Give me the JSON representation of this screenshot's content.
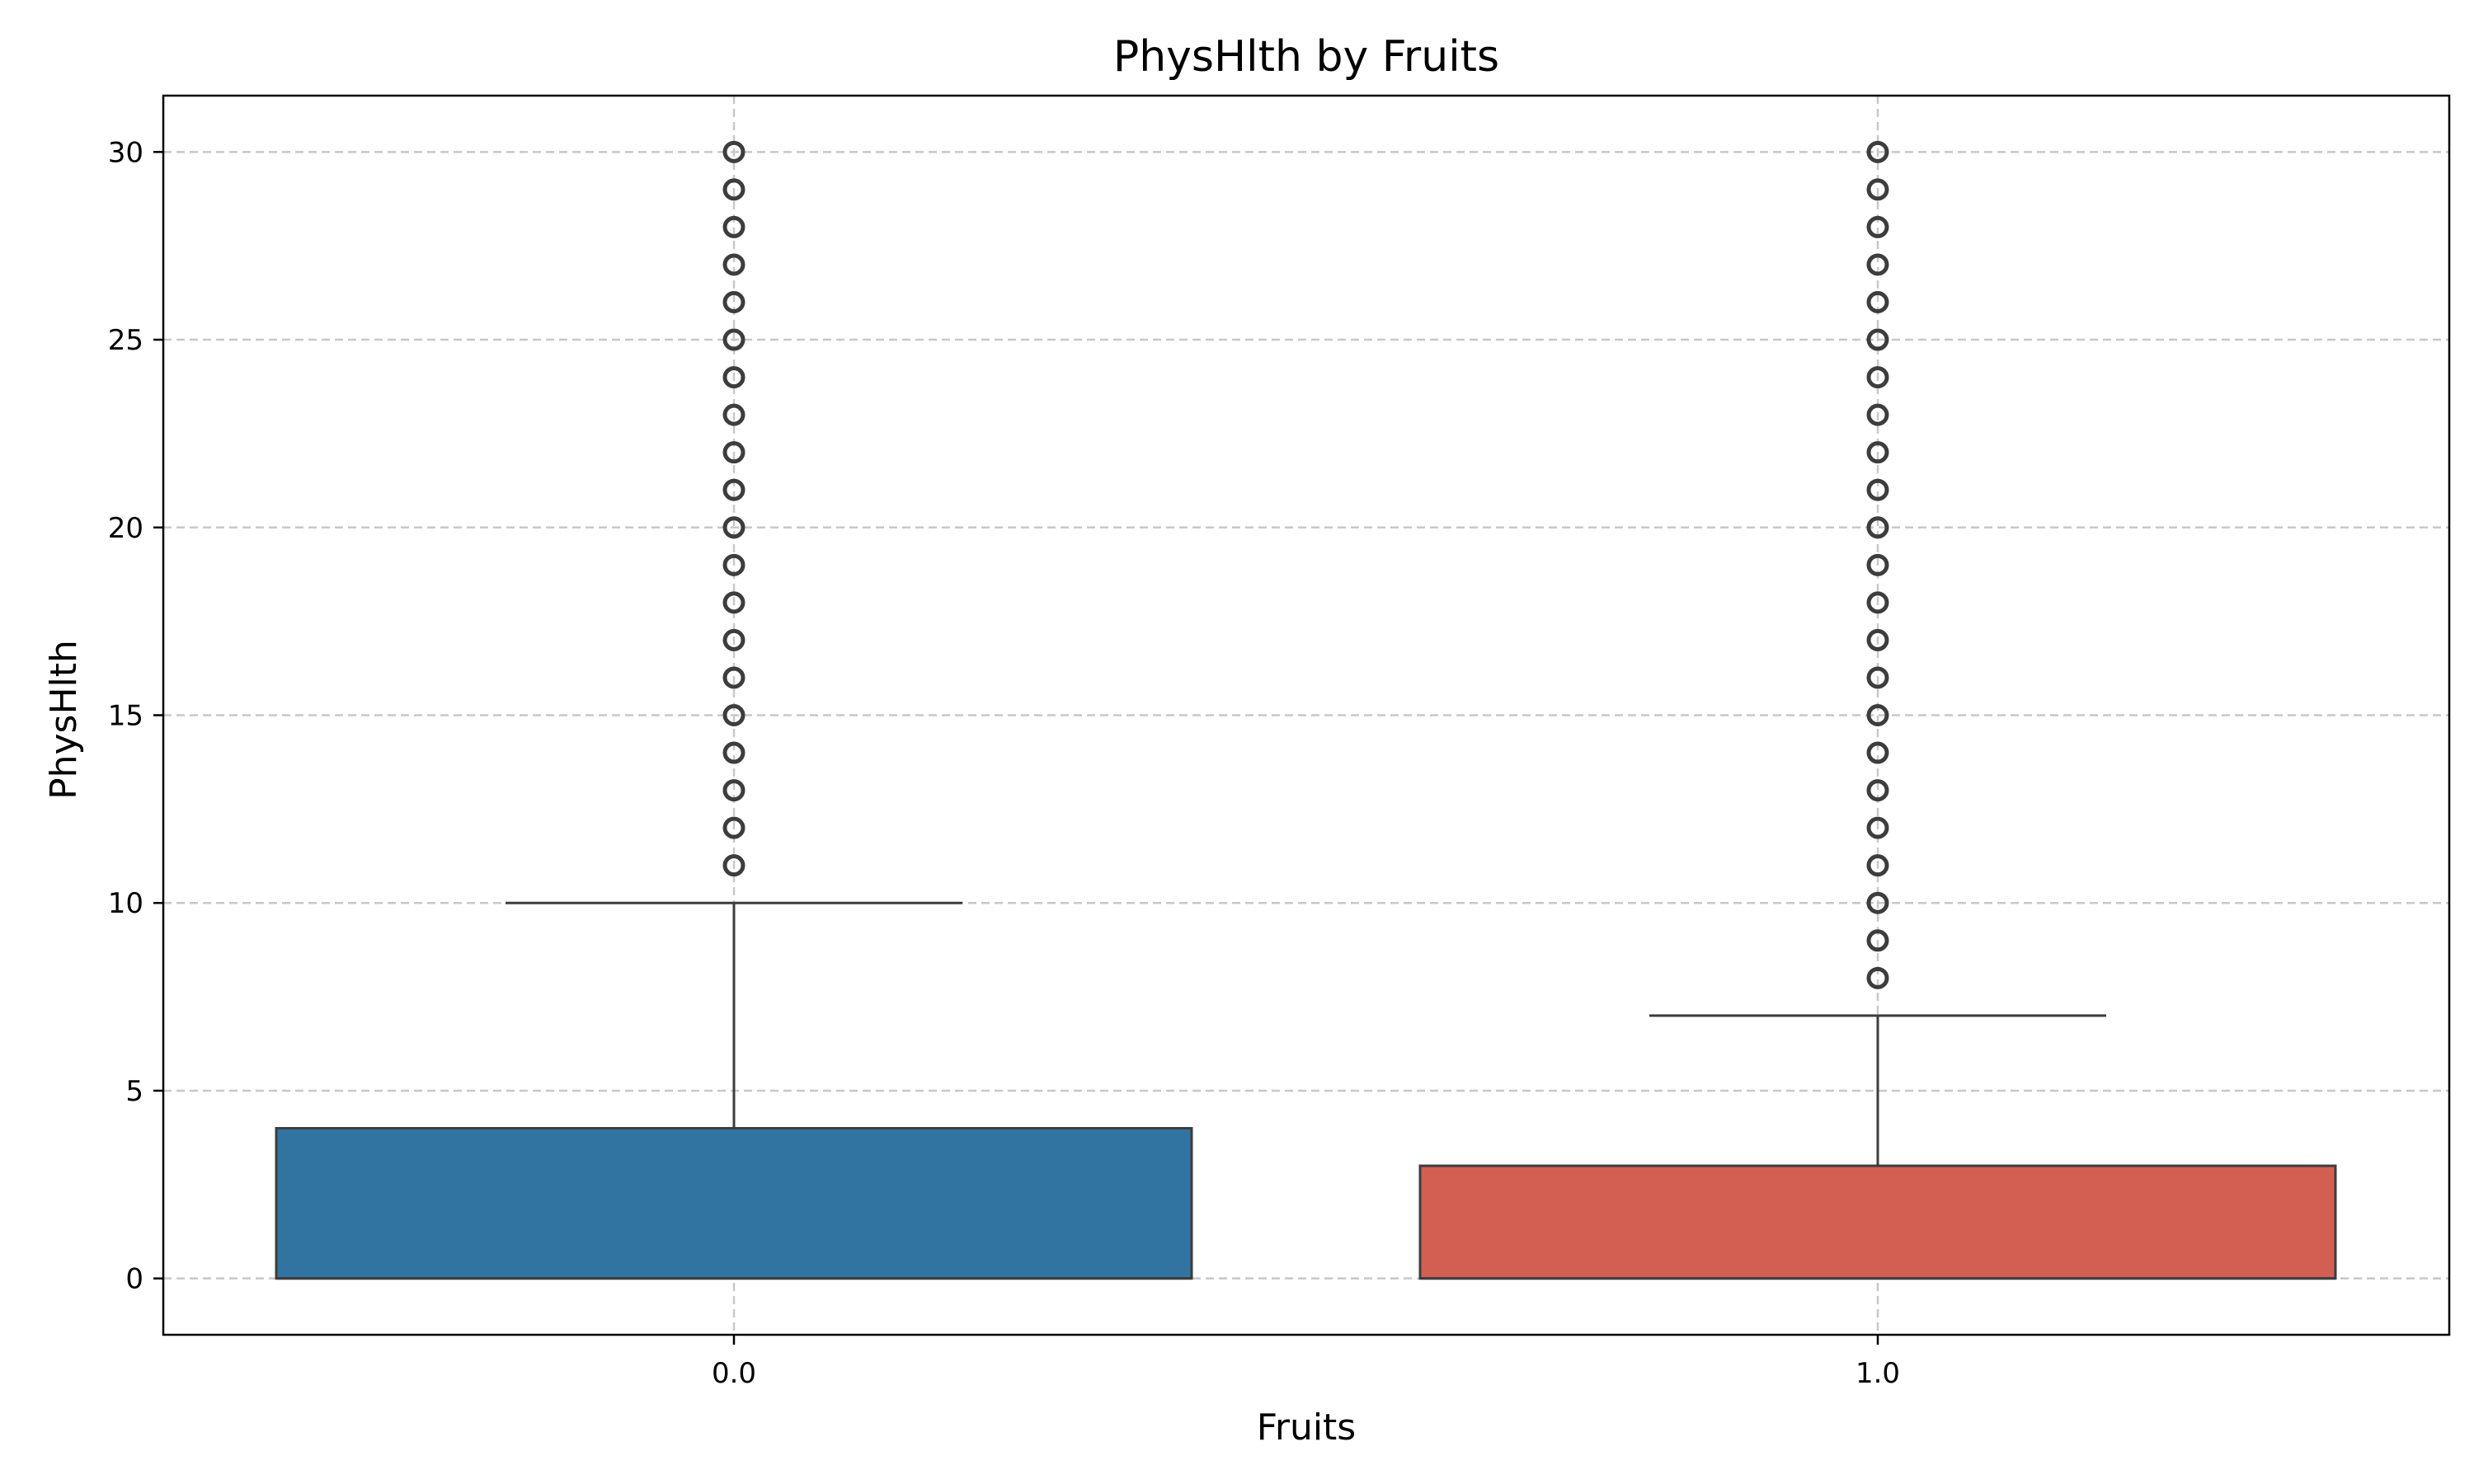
{
  "chart_data": {
    "type": "box",
    "title": "PhysHlth by Fruits",
    "xlabel": "Fruits",
    "ylabel": "PhysHlth",
    "categories": [
      "0.0",
      "1.0"
    ],
    "ylim": [
      -1.5,
      31.5
    ],
    "yticks": [
      0,
      5,
      10,
      15,
      20,
      25,
      30
    ],
    "grid": true,
    "series": [
      {
        "category": "0.0",
        "color": "#3274a1",
        "min": 0,
        "q1": 0,
        "median": 0,
        "q3": 4,
        "whisker_high": 10,
        "outliers": [
          11,
          12,
          13,
          14,
          15,
          16,
          17,
          18,
          19,
          20,
          21,
          22,
          23,
          24,
          25,
          26,
          27,
          28,
          29,
          30
        ]
      },
      {
        "category": "1.0",
        "color": "#d35f52",
        "min": 0,
        "q1": 0,
        "median": 0,
        "q3": 3,
        "whisker_high": 7,
        "outliers": [
          8,
          9,
          10,
          11,
          12,
          13,
          14,
          15,
          16,
          17,
          18,
          19,
          20,
          21,
          22,
          23,
          24,
          25,
          26,
          27,
          28,
          29,
          30
        ]
      }
    ]
  }
}
